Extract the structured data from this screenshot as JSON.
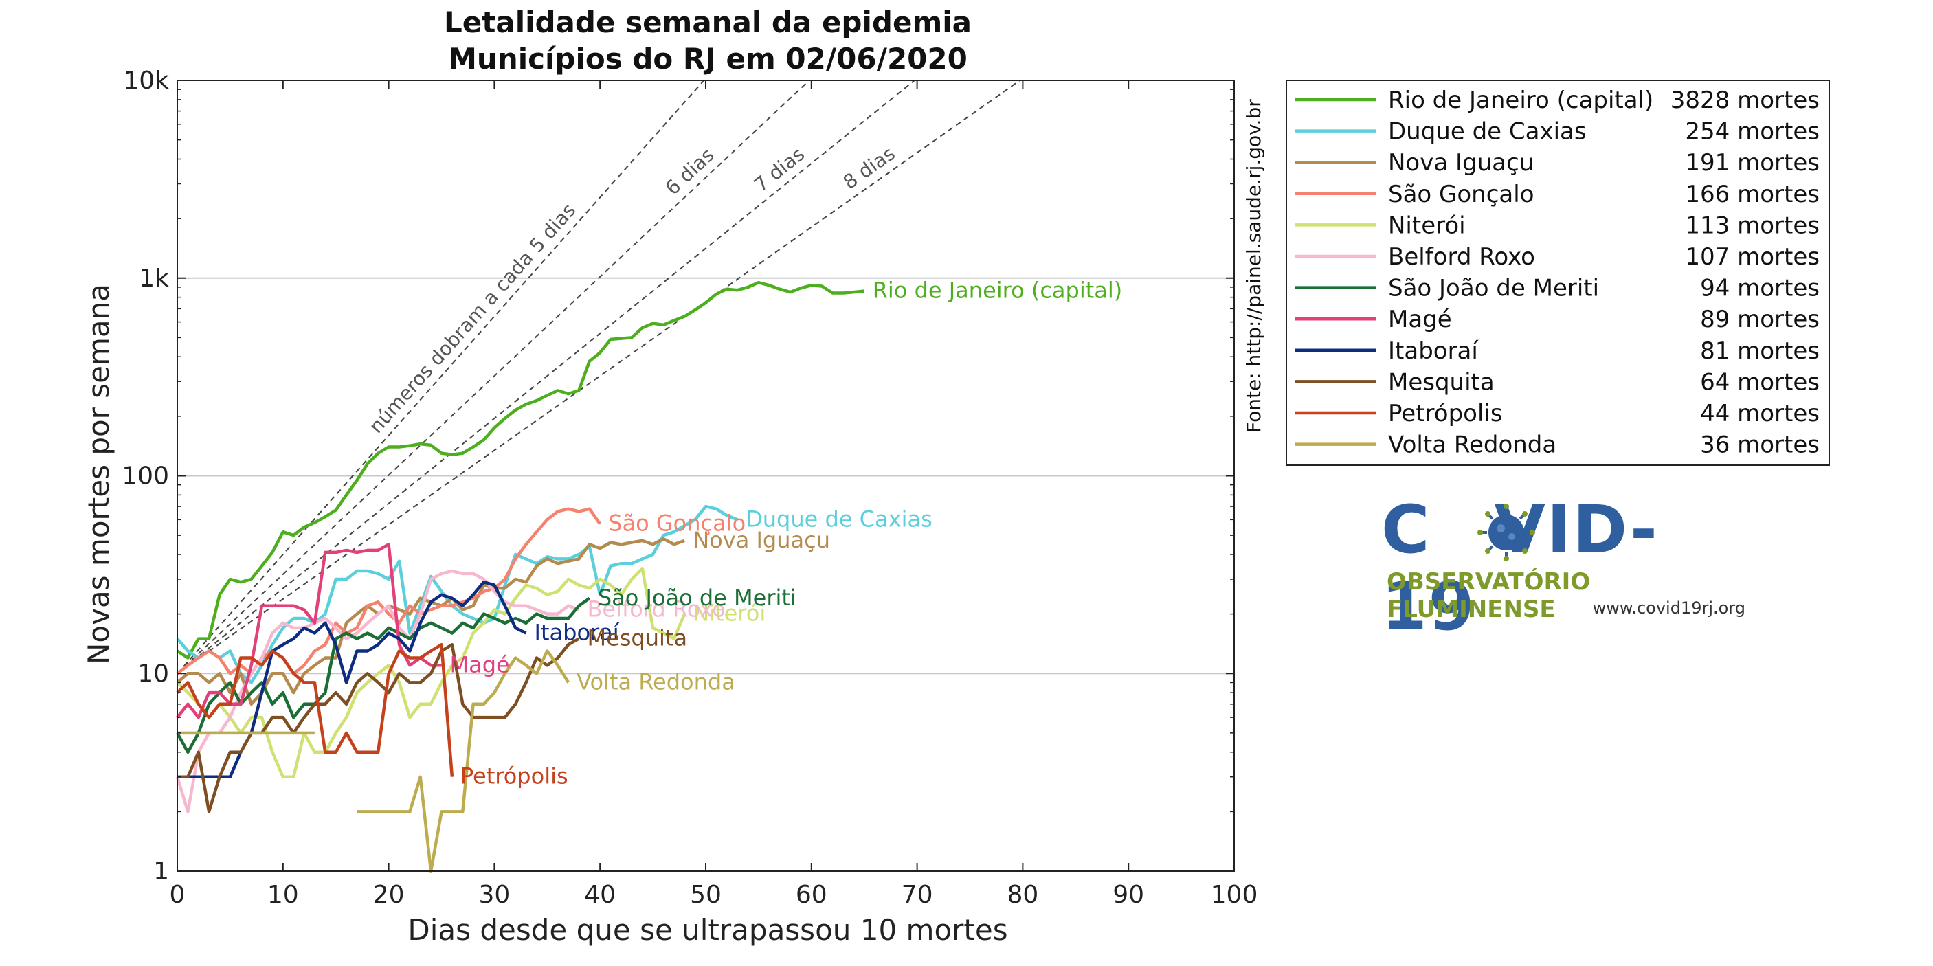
{
  "chart_data": {
    "type": "line",
    "title": "Letalidade semanal da epidemia",
    "subtitle": "Municípios do RJ em 02/06/2020",
    "xlabel": "Dias desde que se ultrapassou 10 mortes",
    "ylabel": "Novas mortes por semana",
    "xlim": [
      0,
      100
    ],
    "ylim": [
      1,
      10000
    ],
    "yscale": "log",
    "grid": "horizontal",
    "xticks": [
      "0",
      "10",
      "20",
      "30",
      "40",
      "50",
      "60",
      "70",
      "80",
      "90",
      "100"
    ],
    "yticks": [
      "1",
      "10",
      "100",
      "1k",
      "10k"
    ],
    "source": "Fonte: http://painel.saude.rj.gov.br",
    "legend_position": "right",
    "reference_lines": [
      {
        "label": "números dobram a cada 5 dias",
        "doubling_days": 5
      },
      {
        "label": "6 dias",
        "doubling_days": 6
      },
      {
        "label": "7 dias",
        "doubling_days": 7
      },
      {
        "label": "8 dias",
        "doubling_days": 8
      }
    ],
    "series": [
      {
        "name": "Rio de Janeiro (capital)",
        "deaths": "3828 mortes",
        "color": "#4daf1e",
        "x": [
          0,
          1,
          2,
          3,
          4,
          5,
          6,
          7,
          8,
          9,
          10,
          11,
          12,
          13,
          14,
          15,
          16,
          17,
          18,
          19,
          20,
          21,
          22,
          23,
          24,
          25,
          26,
          27,
          28,
          29,
          30,
          31,
          32,
          33,
          34,
          35,
          36,
          37,
          38,
          39,
          40,
          41,
          42,
          43,
          44,
          45,
          46,
          47,
          48,
          49,
          50,
          51,
          52,
          53,
          54,
          55,
          56,
          57,
          58,
          59,
          60,
          61,
          62,
          63,
          64,
          65
        ],
        "y": [
          13,
          12,
          15,
          15,
          25,
          30,
          29,
          30,
          35,
          41,
          52,
          50,
          55,
          58,
          62,
          67,
          80,
          95,
          115,
          130,
          140,
          140,
          142,
          145,
          143,
          130,
          128,
          130,
          140,
          152,
          175,
          195,
          215,
          230,
          240,
          255,
          270,
          260,
          270,
          380,
          420,
          490,
          495,
          500,
          560,
          590,
          580,
          610,
          640,
          690,
          750,
          830,
          880,
          870,
          900,
          950,
          920,
          880,
          850,
          890,
          920,
          910,
          840,
          840,
          850,
          860
        ]
      },
      {
        "name": "Duque de Caxias",
        "deaths": "254 mortes",
        "color": "#5bcfdc",
        "x": [
          0,
          1,
          2,
          3,
          4,
          5,
          6,
          7,
          8,
          9,
          10,
          11,
          12,
          13,
          14,
          15,
          16,
          17,
          18,
          19,
          20,
          21,
          22,
          23,
          24,
          25,
          26,
          27,
          28,
          29,
          30,
          31,
          32,
          33,
          34,
          35,
          36,
          37,
          38,
          39,
          40,
          41,
          42,
          43,
          44,
          45,
          46,
          47,
          48,
          49,
          50,
          51,
          52,
          53
        ],
        "y": [
          15,
          13,
          12,
          13,
          12,
          13,
          10,
          9,
          11,
          14,
          17,
          19,
          19,
          18,
          20,
          30,
          30,
          33,
          33,
          32,
          30,
          37,
          16,
          22,
          31,
          26,
          22,
          20,
          19,
          18,
          19,
          28,
          40,
          38,
          36,
          39,
          38,
          38,
          40,
          44,
          25,
          35,
          36,
          36,
          38,
          40,
          50,
          52,
          56,
          60,
          70,
          68,
          63,
          60
        ]
      },
      {
        "name": "Nova Iguaçu",
        "deaths": "191 mortes",
        "color": "#b48a4e",
        "x": [
          0,
          1,
          2,
          3,
          4,
          5,
          6,
          7,
          8,
          9,
          10,
          11,
          12,
          13,
          14,
          15,
          16,
          17,
          18,
          19,
          20,
          21,
          22,
          23,
          24,
          25,
          26,
          27,
          28,
          29,
          30,
          31,
          32,
          33,
          34,
          35,
          36,
          37,
          38,
          39,
          40,
          41,
          42,
          43,
          44,
          45,
          46,
          47,
          48
        ],
        "y": [
          9,
          10,
          10,
          9,
          10,
          8,
          10,
          7,
          8,
          10,
          10,
          8,
          10,
          11,
          12,
          12,
          18,
          20,
          22,
          20,
          22,
          21,
          20,
          24,
          23,
          22,
          24,
          21,
          22,
          28,
          27,
          27,
          30,
          29,
          35,
          38,
          36,
          37,
          38,
          45,
          43,
          46,
          45,
          46,
          47,
          45,
          48,
          45,
          47
        ]
      },
      {
        "name": "São Gonçalo",
        "deaths": "166 mortes",
        "color": "#f4826e",
        "x": [
          0,
          1,
          2,
          3,
          4,
          5,
          6,
          7,
          8,
          9,
          10,
          11,
          12,
          13,
          14,
          15,
          16,
          17,
          18,
          19,
          20,
          21,
          22,
          23,
          24,
          25,
          26,
          27,
          28,
          29,
          30,
          31,
          32,
          33,
          34,
          35,
          36,
          37,
          38,
          39,
          40
        ],
        "y": [
          10,
          11,
          12,
          13,
          12,
          10,
          11,
          10,
          12,
          13,
          12,
          10,
          11,
          13,
          14,
          18,
          16,
          17,
          22,
          23,
          20,
          18,
          22,
          20,
          21,
          22,
          22,
          23,
          24,
          26,
          27,
          30,
          38,
          45,
          52,
          60,
          66,
          68,
          66,
          68,
          57
        ]
      },
      {
        "name": "Niterói",
        "deaths": "113 mortes",
        "color": "#cfe170",
        "x": [
          0,
          1,
          2,
          3,
          4,
          5,
          6,
          7,
          8,
          9,
          10,
          11,
          12,
          13,
          14,
          15,
          16,
          17,
          18,
          19,
          20,
          21,
          22,
          23,
          24,
          25,
          26,
          27,
          28,
          29,
          30,
          31,
          32,
          33,
          34,
          35,
          36,
          37,
          38,
          39,
          40,
          41,
          42,
          43,
          44,
          45,
          46,
          47,
          48
        ],
        "y": [
          9,
          8,
          7,
          6,
          7,
          6,
          5,
          6,
          6,
          4,
          3,
          3,
          5,
          4,
          4,
          5,
          6,
          8,
          9,
          10,
          11,
          9,
          6,
          7,
          7,
          9,
          11,
          12,
          16,
          18,
          21,
          20,
          24,
          28,
          27,
          25,
          26,
          30,
          28,
          27,
          30,
          28,
          25,
          30,
          34,
          17,
          16,
          15,
          20
        ]
      },
      {
        "name": "Belford Roxo",
        "deaths": "107 mortes",
        "color": "#f6b7cf",
        "x": [
          0,
          1,
          2,
          3,
          4,
          5,
          6,
          7,
          8,
          9,
          10,
          11,
          12,
          13,
          14,
          15,
          16,
          17,
          18,
          19,
          20,
          21,
          22,
          23,
          24,
          25,
          26,
          27,
          28,
          29,
          30,
          31,
          32,
          33,
          34,
          35,
          36,
          37,
          38
        ],
        "y": [
          3,
          2,
          4,
          5,
          5,
          6,
          8,
          10,
          12,
          16,
          18,
          17,
          17,
          18,
          19,
          17,
          15,
          16,
          18,
          20,
          22,
          17,
          15,
          20,
          30,
          32,
          33,
          32,
          32,
          30,
          26,
          23,
          22,
          22,
          21,
          20,
          20,
          22,
          21
        ]
      },
      {
        "name": "São João de Meriti",
        "deaths": "94 mortes",
        "color": "#1b6e35",
        "x": [
          0,
          1,
          2,
          3,
          4,
          5,
          6,
          7,
          8,
          9,
          10,
          11,
          12,
          13,
          14,
          15,
          16,
          17,
          18,
          19,
          20,
          21,
          22,
          23,
          24,
          25,
          26,
          27,
          28,
          29,
          30,
          31,
          32,
          33,
          34,
          35,
          36,
          37,
          38,
          39
        ],
        "y": [
          5,
          4,
          5,
          7,
          8,
          9,
          7,
          8,
          9,
          7,
          8,
          6,
          7,
          7,
          8,
          15,
          16,
          15,
          16,
          15,
          17,
          16,
          15,
          17,
          18,
          17,
          16,
          18,
          17,
          20,
          19,
          18,
          19,
          18,
          20,
          19,
          19,
          19,
          22,
          24
        ]
      },
      {
        "name": "Magé",
        "deaths": "89 mortes",
        "color": "#e33f7b",
        "x": [
          0,
          1,
          2,
          3,
          4,
          5,
          6,
          7,
          8,
          9,
          10,
          11,
          12,
          13,
          14,
          15,
          16,
          17,
          18,
          19,
          20,
          21,
          22,
          23,
          24,
          25
        ],
        "y": [
          6,
          7,
          6,
          8,
          8,
          7,
          7,
          11,
          22,
          22,
          22,
          22,
          21,
          18,
          41,
          41,
          42,
          41,
          42,
          42,
          45,
          14,
          11,
          12,
          11,
          11
        ]
      },
      {
        "name": "Itaboraí",
        "deaths": "81 mortes",
        "color": "#0e2c80",
        "x": [
          0,
          1,
          2,
          3,
          4,
          5,
          6,
          7,
          8,
          9,
          10,
          11,
          12,
          13,
          14,
          15,
          16,
          17,
          18,
          19,
          20,
          21,
          22,
          23,
          24,
          25,
          26,
          27,
          28,
          29,
          30,
          31,
          32,
          33
        ],
        "y": [
          3,
          3,
          3,
          3,
          3,
          3,
          4,
          5,
          8,
          13,
          14,
          15,
          17,
          16,
          18,
          14,
          9,
          13,
          13,
          14,
          16,
          15,
          13,
          18,
          23,
          25,
          24,
          22,
          25,
          29,
          28,
          22,
          17,
          16
        ]
      },
      {
        "name": "Mesquita",
        "deaths": "64 mortes",
        "color": "#7d4f22",
        "x": [
          0,
          1,
          2,
          3,
          4,
          5,
          6,
          7,
          8,
          9,
          10,
          11,
          12,
          13,
          14,
          15,
          16,
          17,
          18,
          19,
          20,
          21,
          22,
          23,
          24,
          25,
          26,
          27,
          28,
          29,
          30,
          31,
          32,
          33,
          34,
          35,
          36,
          37,
          38
        ],
        "y": [
          3,
          3,
          4,
          2,
          3,
          4,
          4,
          5,
          5,
          6,
          6,
          5,
          6,
          7,
          7,
          8,
          7,
          9,
          10,
          9,
          8,
          10,
          9,
          9,
          10,
          13,
          14,
          7,
          6,
          6,
          6,
          6,
          7,
          9,
          12,
          11,
          12,
          14,
          15
        ]
      },
      {
        "name": "Petrópolis",
        "deaths": "44 mortes",
        "color": "#c4411c",
        "x": [
          0,
          1,
          2,
          3,
          4,
          5,
          6,
          7,
          8,
          9,
          10,
          11,
          12,
          13,
          14,
          15,
          16,
          17,
          18,
          19,
          20,
          21,
          22,
          23,
          24,
          25,
          26
        ],
        "y": [
          8,
          9,
          7,
          6,
          7,
          7,
          12,
          12,
          11,
          13,
          12,
          10,
          9,
          9,
          4,
          4,
          5,
          4,
          4,
          4,
          10,
          13,
          12,
          12,
          13,
          14,
          3
        ]
      },
      {
        "name": "Volta Redonda",
        "deaths": "36 mortes",
        "color": "#bdac4f",
        "x": [
          0,
          1,
          2,
          3,
          4,
          5,
          6,
          7,
          8,
          9,
          10,
          11,
          12,
          13,
          17,
          18,
          19,
          20,
          21,
          22,
          23,
          24,
          25,
          26,
          27,
          28,
          29,
          30,
          31,
          32,
          33,
          34,
          35,
          36,
          37
        ],
        "y": [
          5,
          5,
          5,
          5,
          5,
          5,
          5,
          5,
          5,
          5,
          5,
          5,
          5,
          5,
          2,
          2,
          2,
          2,
          2,
          2,
          3,
          1,
          2,
          2,
          2,
          7,
          7,
          8,
          10,
          12,
          11,
          10,
          13,
          11,
          9
        ]
      }
    ]
  },
  "logo": {
    "title_left": "C",
    "title_right": "VID-19",
    "subtitle": "OBSERVATÓRIO FLUMINENSE",
    "url": "www.covid19rj.org"
  }
}
